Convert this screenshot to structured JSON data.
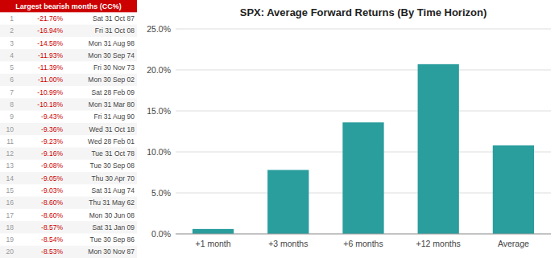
{
  "chart_data": [
    {
      "type": "table",
      "title": "Largest bearish months (CC%)",
      "color": "#cc0000",
      "rows": [
        [
          1,
          "-21.76%",
          "Sat 31 Oct 87"
        ],
        [
          2,
          "-16.94%",
          "Fri 31 Oct 08"
        ],
        [
          3,
          "-14.58%",
          "Mon 31 Aug 98"
        ],
        [
          4,
          "-11.93%",
          "Mon 30 Sep 74"
        ],
        [
          5,
          "-11.39%",
          "Fri 30 Nov 73"
        ],
        [
          6,
          "-11.00%",
          "Mon 30 Sep 02"
        ],
        [
          7,
          "-10.99%",
          "Sat 28 Feb 09"
        ],
        [
          8,
          "-10.18%",
          "Mon 31 Mar 80"
        ],
        [
          9,
          "-9.43%",
          "Fri 31 Aug 90"
        ],
        [
          10,
          "-9.36%",
          "Wed 31 Oct 18"
        ],
        [
          11,
          "-9.23%",
          "Wed 28 Feb 01"
        ],
        [
          12,
          "-9.16%",
          "Tue 31 Oct 78"
        ],
        [
          13,
          "-9.08%",
          "Tue 30 Sep 08"
        ],
        [
          14,
          "-9.05%",
          "Thu 30 Apr 70"
        ],
        [
          15,
          "-9.03%",
          "Sat 31 Aug 74"
        ],
        [
          16,
          "-8.60%",
          "Thu 31 May 62"
        ],
        [
          17,
          "-8.60%",
          "Mon 30 Jun 08"
        ],
        [
          18,
          "-8.57%",
          "Sat 31 Jan 09"
        ],
        [
          19,
          "-8.54%",
          "Tue 30 Sep 86"
        ],
        [
          20,
          "-8.53%",
          "Mon 30 Nov 87"
        ]
      ]
    },
    {
      "type": "bar",
      "title": "SPX: Average Forward Returns (By Time Horizon)",
      "categories": [
        "+1 month",
        "+3 months",
        "+6 months",
        "+12 months",
        "Average"
      ],
      "values": [
        0.006,
        0.078,
        0.136,
        0.207,
        0.108
      ],
      "color": "#2a9d9d",
      "ylim": [
        0,
        0.25
      ],
      "yticks": [
        {
          "value": 0.0,
          "label": "0.0%"
        },
        {
          "value": 0.05,
          "label": "5.0%"
        },
        {
          "value": 0.1,
          "label": "10.0%"
        },
        {
          "value": 0.15,
          "label": "15.0%"
        },
        {
          "value": 0.2,
          "label": "20.0%"
        },
        {
          "value": 0.25,
          "label": "25.0%"
        }
      ],
      "grid": true
    }
  ]
}
